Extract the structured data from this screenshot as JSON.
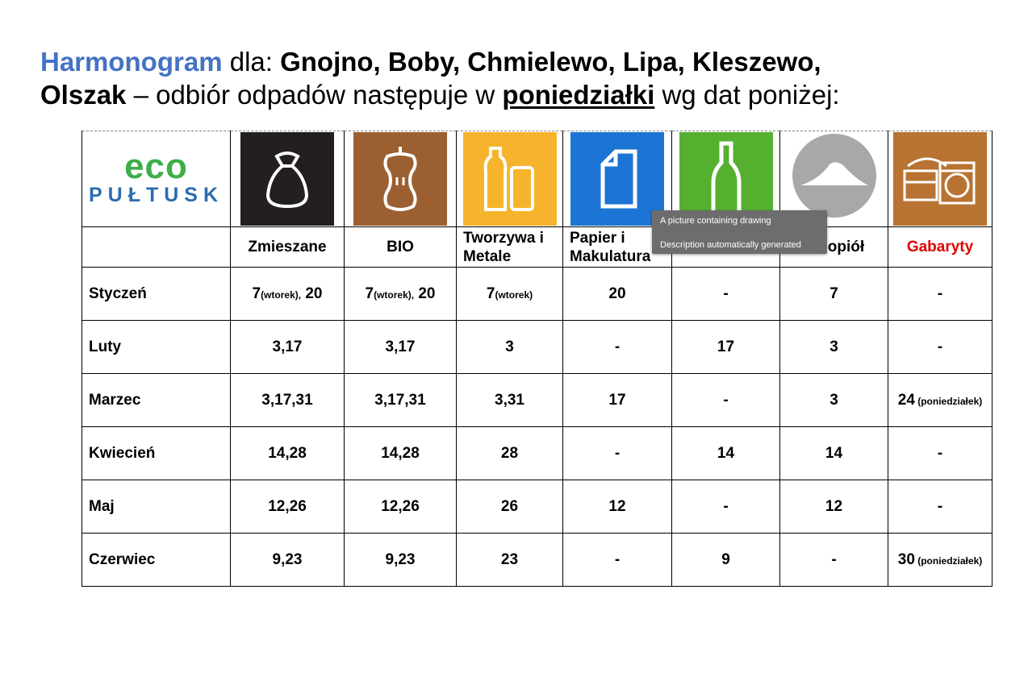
{
  "title": {
    "part1": "Harmonogram",
    "part2": " dla: ",
    "part3": "Gnojno, Boby, Chmielewo, Lipa, Kleszewo,",
    "part4": "Olszak",
    "part5": "  – odbiór odpadów następuje w ",
    "part6": "poniedziałki",
    "part7": " wg dat poniżej:"
  },
  "logo": {
    "top": "eco",
    "bottom": "PUŁTUSK"
  },
  "icons": [
    {
      "name": "mixed-waste-bag-icon",
      "color": "#231F20"
    },
    {
      "name": "bio-apple-core-icon",
      "color": "#9B5F31"
    },
    {
      "name": "plastic-bottle-can-icon",
      "color": "#F6B42C"
    },
    {
      "name": "paper-document-icon",
      "color": "#1C75D4"
    },
    {
      "name": "glass-bottle-icon",
      "color": "#55B02F"
    },
    {
      "name": "ash-pile-icon",
      "color": "#A8A8A8"
    },
    {
      "name": "bulky-furniture-washer-icon",
      "color": "#B87333"
    }
  ],
  "headers": {
    "zmieszane": "Zmieszane",
    "bio": "BIO",
    "tworzywa_1": "Tworzywa i",
    "tworzywa_2": "Metale",
    "papier_1": "Papier i",
    "papier_2": "Makulatura",
    "popiol": "opiół",
    "gabaryty": "Gabaryty"
  },
  "rows": [
    {
      "month": "Styczeń",
      "zm_a": "7",
      "zm_note": "(wtorek),",
      "zm_b": " 20",
      "bio_a": "7",
      "bio_note": "(wtorek),",
      "bio_b": " 20",
      "tw_a": "7",
      "tw_note": "(wtorek)",
      "papier": "20",
      "szklo": "-",
      "popiol": "7",
      "gab": "-"
    },
    {
      "month": "Luty",
      "zm": "3,17",
      "bio": "3,17",
      "tw": "3",
      "papier": "-",
      "szklo": "17",
      "popiol": "3",
      "gab": "-"
    },
    {
      "month": "Marzec",
      "zm": "3,17,31",
      "bio": "3,17,31",
      "tw": "3,31",
      "papier": "17",
      "szklo": "-",
      "popiol": "3",
      "gab_a": "24",
      "gab_note": " (poniedziałek)"
    },
    {
      "month": "Kwiecień",
      "zm": "14,28",
      "bio": "14,28",
      "tw": "28",
      "papier": "-",
      "szklo": "14",
      "popiol": "14",
      "gab": "-"
    },
    {
      "month": "Maj",
      "zm": "12,26",
      "bio": "12,26",
      "tw": "26",
      "papier": "12",
      "szklo": "-",
      "popiol": "12",
      "gab": "-"
    },
    {
      "month": "Czerwiec",
      "zm": "9,23",
      "bio": "9,23",
      "tw": "23",
      "papier": "-",
      "szklo": "9",
      "popiol": "-",
      "gab_a": "30",
      "gab_note": " (poniedziałek)"
    }
  ],
  "tooltip": {
    "line1": "A picture containing drawing",
    "line2": "Description automatically generated"
  }
}
